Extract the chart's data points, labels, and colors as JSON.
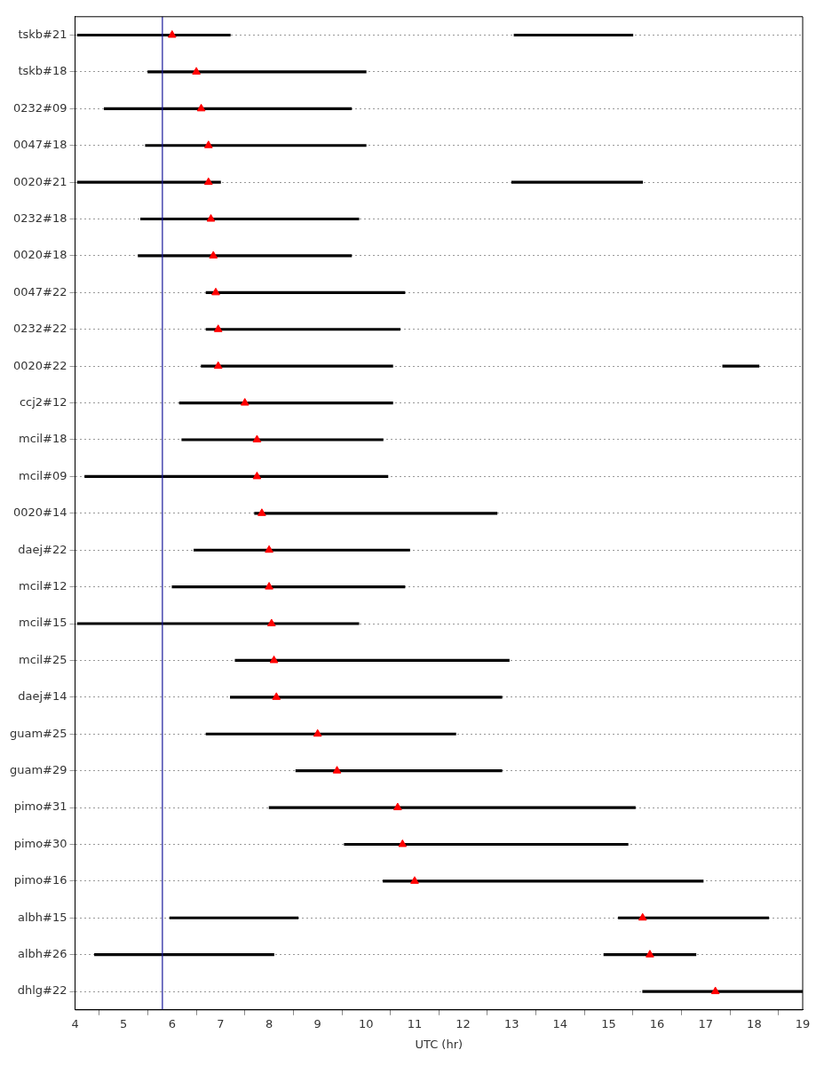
{
  "chart_data": {
    "type": "bar",
    "orientation": "horizontal",
    "xlabel": "UTC (hr)",
    "categories": [
      "tskb#21",
      "tskb#18",
      "0232#09",
      "0047#18",
      "0020#21",
      "0232#18",
      "0020#18",
      "0047#22",
      "0232#22",
      "0020#22",
      "ccj2#12",
      "mcil#18",
      "mcil#09",
      "0020#14",
      "daej#22",
      "mcil#12",
      "mcil#15",
      "mcil#25",
      "daej#14",
      "guam#25",
      "guam#29",
      "pimo#31",
      "pimo#30",
      "pimo#16",
      "albh#15",
      "albh#26",
      "dhlg#22"
    ],
    "xlim": [
      4,
      19
    ],
    "xticks": [
      4,
      5,
      6,
      7,
      8,
      9,
      10,
      11,
      12,
      13,
      14,
      15,
      16,
      17,
      18,
      19
    ],
    "grid": "y",
    "legend": false,
    "ref_lines": [
      {
        "axis": "x",
        "value": 5.8,
        "color": "#1a1a9a"
      }
    ],
    "series": [
      {
        "color": "#000000",
        "base": [
          4.05,
          5.5,
          4.6,
          5.45,
          4.05,
          5.35,
          5.3,
          6.7,
          6.7,
          6.6,
          6.15,
          6.2,
          4.2,
          7.7,
          6.45,
          6.0,
          4.05,
          7.3,
          7.2,
          6.7,
          8.55,
          8.0,
          9.55,
          10.35,
          5.95,
          4.4,
          15.7
        ],
        "values": [
          3.15,
          4.5,
          5.1,
          4.55,
          2.95,
          4.5,
          4.4,
          4.1,
          4.0,
          3.95,
          4.4,
          4.15,
          6.25,
          5.0,
          4.45,
          4.8,
          5.8,
          5.65,
          5.6,
          5.15,
          4.25,
          7.55,
          5.85,
          6.6,
          2.65,
          3.7,
          3.3
        ]
      },
      {
        "color": "#000000",
        "base": [
          13.05,
          null,
          null,
          null,
          13.0,
          null,
          null,
          null,
          null,
          17.35,
          null,
          null,
          null,
          null,
          null,
          null,
          null,
          null,
          null,
          null,
          null,
          null,
          null,
          null,
          15.2,
          14.9,
          null
        ],
        "values": [
          2.45,
          null,
          null,
          null,
          2.7,
          null,
          null,
          null,
          null,
          0.75,
          null,
          null,
          null,
          null,
          null,
          null,
          null,
          null,
          null,
          null,
          null,
          null,
          null,
          null,
          3.1,
          1.9,
          null
        ]
      },
      {
        "type": "scatter",
        "color": "#ff0000",
        "marker": "triangle",
        "values": [
          6.0,
          6.5,
          6.6,
          6.75,
          6.75,
          6.8,
          6.85,
          6.9,
          6.95,
          6.95,
          7.5,
          7.75,
          7.75,
          7.85,
          8.0,
          8.0,
          8.05,
          8.1,
          8.15,
          9.0,
          9.4,
          10.65,
          10.75,
          11.0,
          15.7,
          15.85,
          17.2
        ]
      }
    ]
  }
}
